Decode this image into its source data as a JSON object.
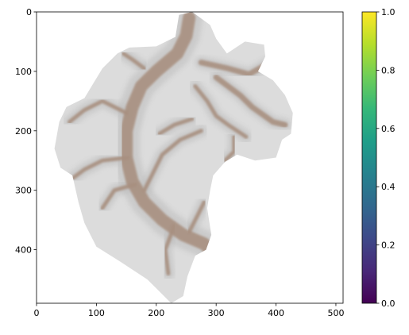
{
  "chart_data": {
    "type": "heatmap",
    "title": "",
    "xlabel": "",
    "ylabel": "",
    "xlim": [
      0,
      512
    ],
    "ylim": [
      490,
      0
    ],
    "x_ticks": [
      0,
      100,
      200,
      300,
      400,
      500
    ],
    "y_ticks": [
      0,
      100,
      200,
      300,
      400
    ],
    "y_axis_inverted": true,
    "image_description": "grayscale shaded-relief terrain mask of a single watershed with a brown-tinted main river channel and tributaries; area outside the watershed is white",
    "watershed_outline": [
      [
        260,
        0
      ],
      [
        290,
        22
      ],
      [
        300,
        45
      ],
      [
        318,
        70
      ],
      [
        348,
        50
      ],
      [
        380,
        55
      ],
      [
        382,
        75
      ],
      [
        370,
        100
      ],
      [
        395,
        115
      ],
      [
        415,
        140
      ],
      [
        428,
        170
      ],
      [
        425,
        205
      ],
      [
        410,
        215
      ],
      [
        400,
        245
      ],
      [
        365,
        250
      ],
      [
        335,
        240
      ],
      [
        315,
        252
      ],
      [
        295,
        275
      ],
      [
        290,
        300
      ],
      [
        285,
        330
      ],
      [
        292,
        375
      ],
      [
        283,
        400
      ],
      [
        265,
        410
      ],
      [
        252,
        445
      ],
      [
        245,
        478
      ],
      [
        225,
        490
      ],
      [
        205,
        470
      ],
      [
        185,
        450
      ],
      [
        140,
        420
      ],
      [
        100,
        395
      ],
      [
        80,
        355
      ],
      [
        70,
        320
      ],
      [
        60,
        275
      ],
      [
        40,
        262
      ],
      [
        30,
        230
      ],
      [
        38,
        185
      ],
      [
        50,
        160
      ],
      [
        80,
        145
      ],
      [
        95,
        120
      ],
      [
        110,
        95
      ],
      [
        135,
        70
      ],
      [
        155,
        60
      ],
      [
        200,
        58
      ],
      [
        232,
        42
      ],
      [
        238,
        5
      ]
    ],
    "channels": [
      [
        [
          255,
          10
        ],
        [
          250,
          40
        ],
        [
          235,
          70
        ],
        [
          200,
          100
        ],
        [
          175,
          125
        ],
        [
          160,
          160
        ],
        [
          150,
          200
        ],
        [
          150,
          245
        ],
        [
          160,
          285
        ],
        [
          180,
          320
        ],
        [
          210,
          350
        ],
        [
          245,
          375
        ],
        [
          280,
          390
        ],
        [
          290,
          400
        ]
      ],
      [
        [
          275,
          85
        ],
        [
          320,
          95
        ],
        [
          355,
          105
        ],
        [
          390,
          85
        ],
        [
          420,
          75
        ]
      ],
      [
        [
          300,
          110
        ],
        [
          340,
          140
        ],
        [
          360,
          160
        ],
        [
          395,
          185
        ],
        [
          415,
          190
        ]
      ],
      [
        [
          265,
          125
        ],
        [
          285,
          150
        ],
        [
          300,
          175
        ],
        [
          320,
          190
        ],
        [
          350,
          210
        ]
      ],
      [
        [
          150,
          170
        ],
        [
          110,
          150
        ],
        [
          80,
          165
        ],
        [
          55,
          185
        ]
      ],
      [
        [
          152,
          245
        ],
        [
          110,
          250
        ],
        [
          80,
          265
        ],
        [
          60,
          280
        ]
      ],
      [
        [
          180,
          300
        ],
        [
          210,
          240
        ],
        [
          240,
          215
        ],
        [
          275,
          200
        ]
      ],
      [
        [
          165,
          290
        ],
        [
          130,
          300
        ],
        [
          110,
          330
        ]
      ],
      [
        [
          205,
          205
        ],
        [
          230,
          190
        ],
        [
          260,
          180
        ]
      ],
      [
        [
          180,
          95
        ],
        [
          160,
          80
        ],
        [
          145,
          70
        ]
      ],
      [
        [
          330,
          210
        ],
        [
          330,
          235
        ],
        [
          315,
          250
        ]
      ],
      [
        [
          255,
          370
        ],
        [
          270,
          340
        ],
        [
          280,
          320
        ]
      ],
      [
        [
          230,
          360
        ],
        [
          215,
          400
        ],
        [
          220,
          440
        ]
      ]
    ],
    "colorbar": {
      "colormap": "viridis",
      "min": 0.0,
      "max": 1.0,
      "ticks": [
        "0.0",
        "0.2",
        "0.4",
        "0.6",
        "0.8",
        "1.0"
      ],
      "stops": [
        "#440154",
        "#482878",
        "#3e4989",
        "#31688e",
        "#26828e",
        "#1f9e89",
        "#35b779",
        "#6ece58",
        "#b5de2b",
        "#fde725"
      ]
    },
    "colors": {
      "terrain": "#dcdcdc",
      "terrain_dark": "#bdbdbd",
      "channel": "#a89080",
      "background": "#ffffff"
    }
  }
}
